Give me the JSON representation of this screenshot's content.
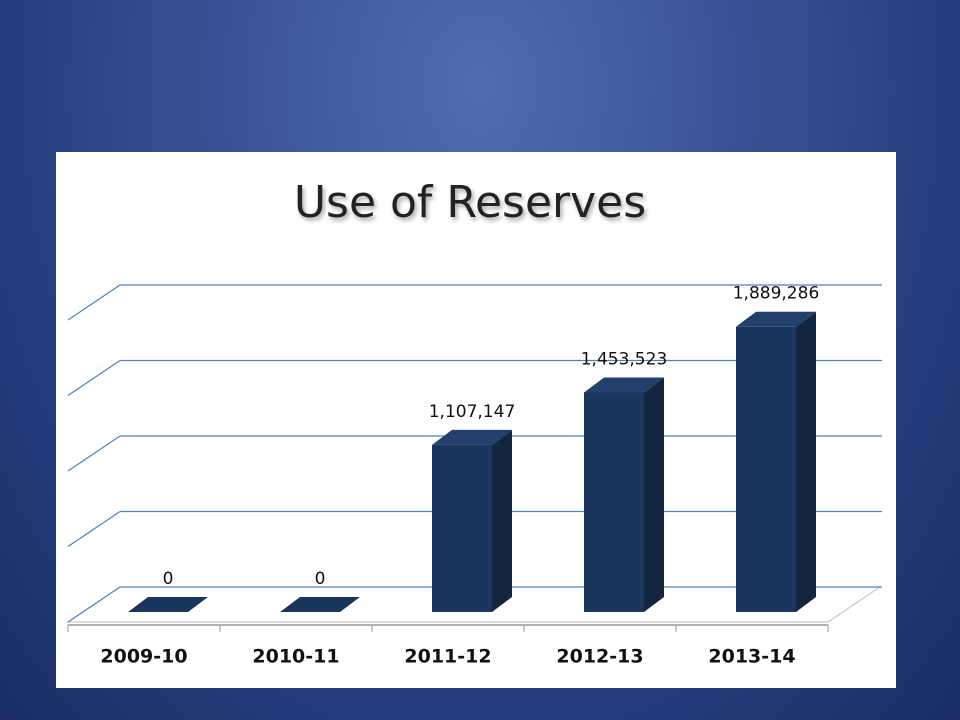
{
  "chart_data": {
    "type": "bar3d",
    "title": "Use of Reserves",
    "categories": [
      "2009-10",
      "2010-11",
      "2011-12",
      "2012-13",
      "2013-14"
    ],
    "values": [
      0,
      0,
      1107147,
      1453523,
      1889286
    ],
    "value_labels": [
      "0",
      "0",
      "1,107,147",
      "1,453,523",
      "1,889,286"
    ],
    "color": "#1b365d",
    "ylim": [
      0,
      2000000
    ],
    "yticks": [
      0,
      500000,
      1000000,
      1500000,
      2000000
    ],
    "grid": true
  }
}
